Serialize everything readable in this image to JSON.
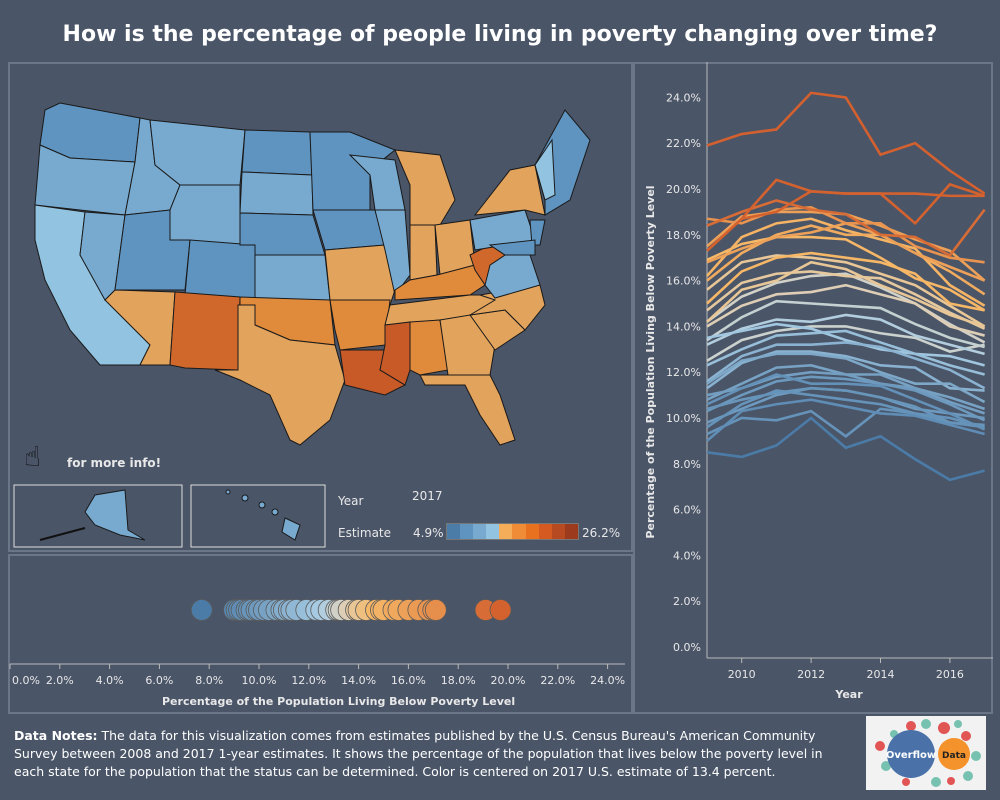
{
  "title": "How is the percentage of people living in poverty changing over time?",
  "map": {
    "hint": "for more info!",
    "year_label": "Year",
    "year_value": "2017",
    "estimate_label": "Estimate",
    "legend_min": "4.9%",
    "legend_max": "26.2%",
    "legend_colors": [
      "#4b7ca8",
      "#5f94c0",
      "#78aad0",
      "#92c3e0",
      "#f5ad5a",
      "#f08c35",
      "#e8711f",
      "#d45a22",
      "#b84a22",
      "#9c3a1e"
    ],
    "center_value": 13.4
  },
  "strip": {
    "xlabel": "Percentage of the Population Living Below Poverty Level",
    "ticks": [
      "0.0%",
      "2.0%",
      "4.0%",
      "6.0%",
      "8.0%",
      "10.0%",
      "12.0%",
      "14.0%",
      "16.0%",
      "18.0%",
      "20.0%",
      "22.0%",
      "24.0%"
    ],
    "values": [
      7.7,
      9.0,
      9.1,
      9.2,
      9.3,
      9.5,
      9.6,
      9.7,
      9.9,
      10.0,
      10.2,
      10.4,
      10.7,
      10.9,
      11.0,
      11.2,
      11.3,
      11.5,
      11.9,
      12.3,
      12.5,
      12.8,
      13.1,
      13.2,
      13.3,
      13.6,
      13.9,
      14.0,
      14.3,
      14.7,
      14.9,
      15.0,
      15.4,
      15.6,
      16.0,
      16.4,
      16.8,
      17.0,
      17.1,
      19.1,
      19.7
    ]
  },
  "chart_data": {
    "type": "line",
    "xlabel": "Year",
    "ylabel": "Percentage of the Population Living Below Poverty Level",
    "x": [
      2009,
      2010,
      2011,
      2012,
      2013,
      2014,
      2015,
      2016,
      2017
    ],
    "xticks": [
      "2010",
      "2012",
      "2014",
      "2016"
    ],
    "yticks": [
      "0.0%",
      "2.0%",
      "4.0%",
      "6.0%",
      "8.0%",
      "10.0%",
      "12.0%",
      "14.0%",
      "16.0%",
      "18.0%",
      "20.0%",
      "22.0%",
      "24.0%"
    ],
    "ylim": [
      0,
      25
    ],
    "grid": false,
    "series": [
      {
        "values": [
          21.9,
          22.4,
          22.6,
          24.2,
          24.0,
          21.5,
          22.0,
          20.8,
          19.8
        ]
      },
      {
        "values": [
          17.3,
          18.7,
          19.0,
          19.9,
          19.8,
          19.8,
          19.8,
          19.7,
          19.7
        ]
      },
      {
        "values": [
          17.3,
          18.7,
          20.4,
          19.9,
          19.8,
          19.8,
          18.5,
          20.2,
          19.7
        ]
      },
      {
        "values": [
          18.7,
          18.5,
          19.1,
          19.2,
          18.5,
          18.5,
          17.5,
          17.0,
          16.8
        ]
      },
      {
        "values": [
          17.5,
          18.8,
          19.0,
          19.0,
          18.9,
          18.4,
          17.8,
          17.3,
          16.0
        ]
      },
      {
        "values": [
          18.4,
          19.0,
          19.5,
          19.1,
          18.9,
          18.0,
          17.9,
          17.1,
          19.1
        ]
      },
      {
        "values": [
          16.0,
          17.2,
          18.0,
          18.4,
          18.0,
          18.0,
          17.2,
          16.4,
          15.4
        ]
      },
      {
        "values": [
          16.2,
          17.9,
          18.5,
          18.7,
          18.2,
          17.8,
          17.4,
          15.8,
          14.9
        ]
      },
      {
        "values": [
          15.0,
          16.4,
          17.0,
          17.2,
          17.0,
          16.8,
          16.3,
          15.0,
          14.7
        ]
      },
      {
        "values": [
          16.9,
          17.6,
          17.9,
          17.9,
          17.8,
          17.0,
          16.1,
          15.6,
          14.7
        ]
      },
      {
        "values": [
          15.6,
          16.8,
          17.1,
          17.0,
          16.8,
          16.3,
          15.8,
          14.9,
          14.0
        ]
      },
      {
        "values": [
          14.7,
          15.9,
          16.3,
          16.4,
          16.2,
          16.1,
          15.4,
          14.6,
          13.9
        ]
      },
      {
        "values": [
          14.2,
          15.3,
          15.9,
          16.2,
          16.3,
          15.7,
          15.0,
          14.1,
          13.3
        ]
      },
      {
        "values": [
          14.0,
          14.9,
          15.4,
          15.5,
          15.8,
          15.4,
          15.0,
          14.0,
          13.6
        ]
      },
      {
        "values": [
          13.4,
          14.4,
          15.1,
          15.0,
          14.9,
          14.8,
          14.1,
          13.5,
          13.1
        ]
      },
      {
        "values": [
          13.2,
          13.9,
          14.3,
          14.2,
          14.5,
          14.3,
          13.6,
          13.2,
          12.8
        ]
      },
      {
        "values": [
          12.5,
          13.4,
          13.8,
          14.0,
          14.0,
          13.7,
          13.5,
          12.9,
          13.2
        ]
      },
      {
        "values": [
          12.3,
          13.0,
          13.6,
          13.7,
          13.8,
          13.3,
          12.8,
          12.3,
          11.9
        ]
      },
      {
        "values": [
          11.6,
          12.7,
          13.2,
          13.2,
          13.3,
          13.1,
          12.6,
          12.1,
          11.3
        ]
      },
      {
        "values": [
          11.3,
          12.4,
          12.9,
          12.9,
          12.7,
          12.3,
          12.2,
          11.3,
          11.2
        ]
      },
      {
        "values": [
          11.5,
          12.5,
          12.8,
          12.8,
          12.6,
          12.0,
          11.5,
          11.5,
          10.7
        ]
      },
      {
        "values": [
          10.8,
          11.5,
          12.2,
          12.3,
          11.9,
          11.9,
          11.3,
          10.9,
          10.4
        ]
      },
      {
        "values": [
          11.0,
          11.3,
          11.8,
          12.0,
          11.9,
          11.5,
          11.3,
          10.7,
          10.2
        ]
      },
      {
        "values": [
          10.3,
          11.0,
          11.6,
          11.8,
          11.7,
          11.5,
          11.2,
          10.6,
          9.9
        ]
      },
      {
        "values": [
          10.6,
          11.3,
          11.9,
          11.5,
          11.5,
          11.4,
          10.8,
          10.2,
          9.5
        ]
      },
      {
        "values": [
          9.8,
          10.4,
          11.0,
          11.3,
          11.2,
          10.9,
          10.4,
          10.2,
          10.0
        ]
      },
      {
        "values": [
          9.6,
          10.6,
          11.2,
          11.0,
          10.8,
          10.6,
          10.2,
          10.0,
          9.6
        ]
      },
      {
        "values": [
          9.0,
          10.3,
          10.6,
          10.8,
          10.5,
          10.2,
          10.1,
          9.7,
          9.3
        ]
      },
      {
        "values": [
          9.3,
          10.0,
          9.9,
          10.3,
          9.2,
          10.4,
          10.2,
          9.8,
          9.6
        ]
      },
      {
        "values": [
          8.5,
          8.3,
          8.8,
          10.0,
          8.7,
          9.2,
          8.2,
          7.3,
          7.7
        ]
      },
      {
        "values": [
          10.4,
          10.8,
          11.1,
          11.3,
          11.2,
          10.9,
          10.5,
          9.8,
          9.7
        ]
      },
      {
        "values": [
          13.5,
          13.8,
          14.1,
          13.9,
          13.4,
          13.0,
          12.8,
          12.7,
          12.3
        ]
      },
      {
        "values": [
          14.2,
          15.6,
          16.0,
          16.8,
          16.5,
          15.8,
          15.2,
          14.5,
          14.0
        ]
      },
      {
        "values": [
          16.8,
          17.4,
          17.9,
          18.1,
          18.5,
          18.0,
          17.2,
          16.6,
          16.0
        ]
      }
    ]
  },
  "notes": {
    "bold": "Data Notes:",
    "text": " The data for this visualization comes from estimates published by the U.S. Census Bureau's American Community Survey between 2008 and 2017 1-year estimates. It shows the percentage of the population that lives below the poverty level in each state for the population that the status can be determined. Color is centered on 2017 U.S. estimate of 13.4 percent."
  },
  "logo": {
    "left": "Overflow",
    "right": "Data"
  }
}
